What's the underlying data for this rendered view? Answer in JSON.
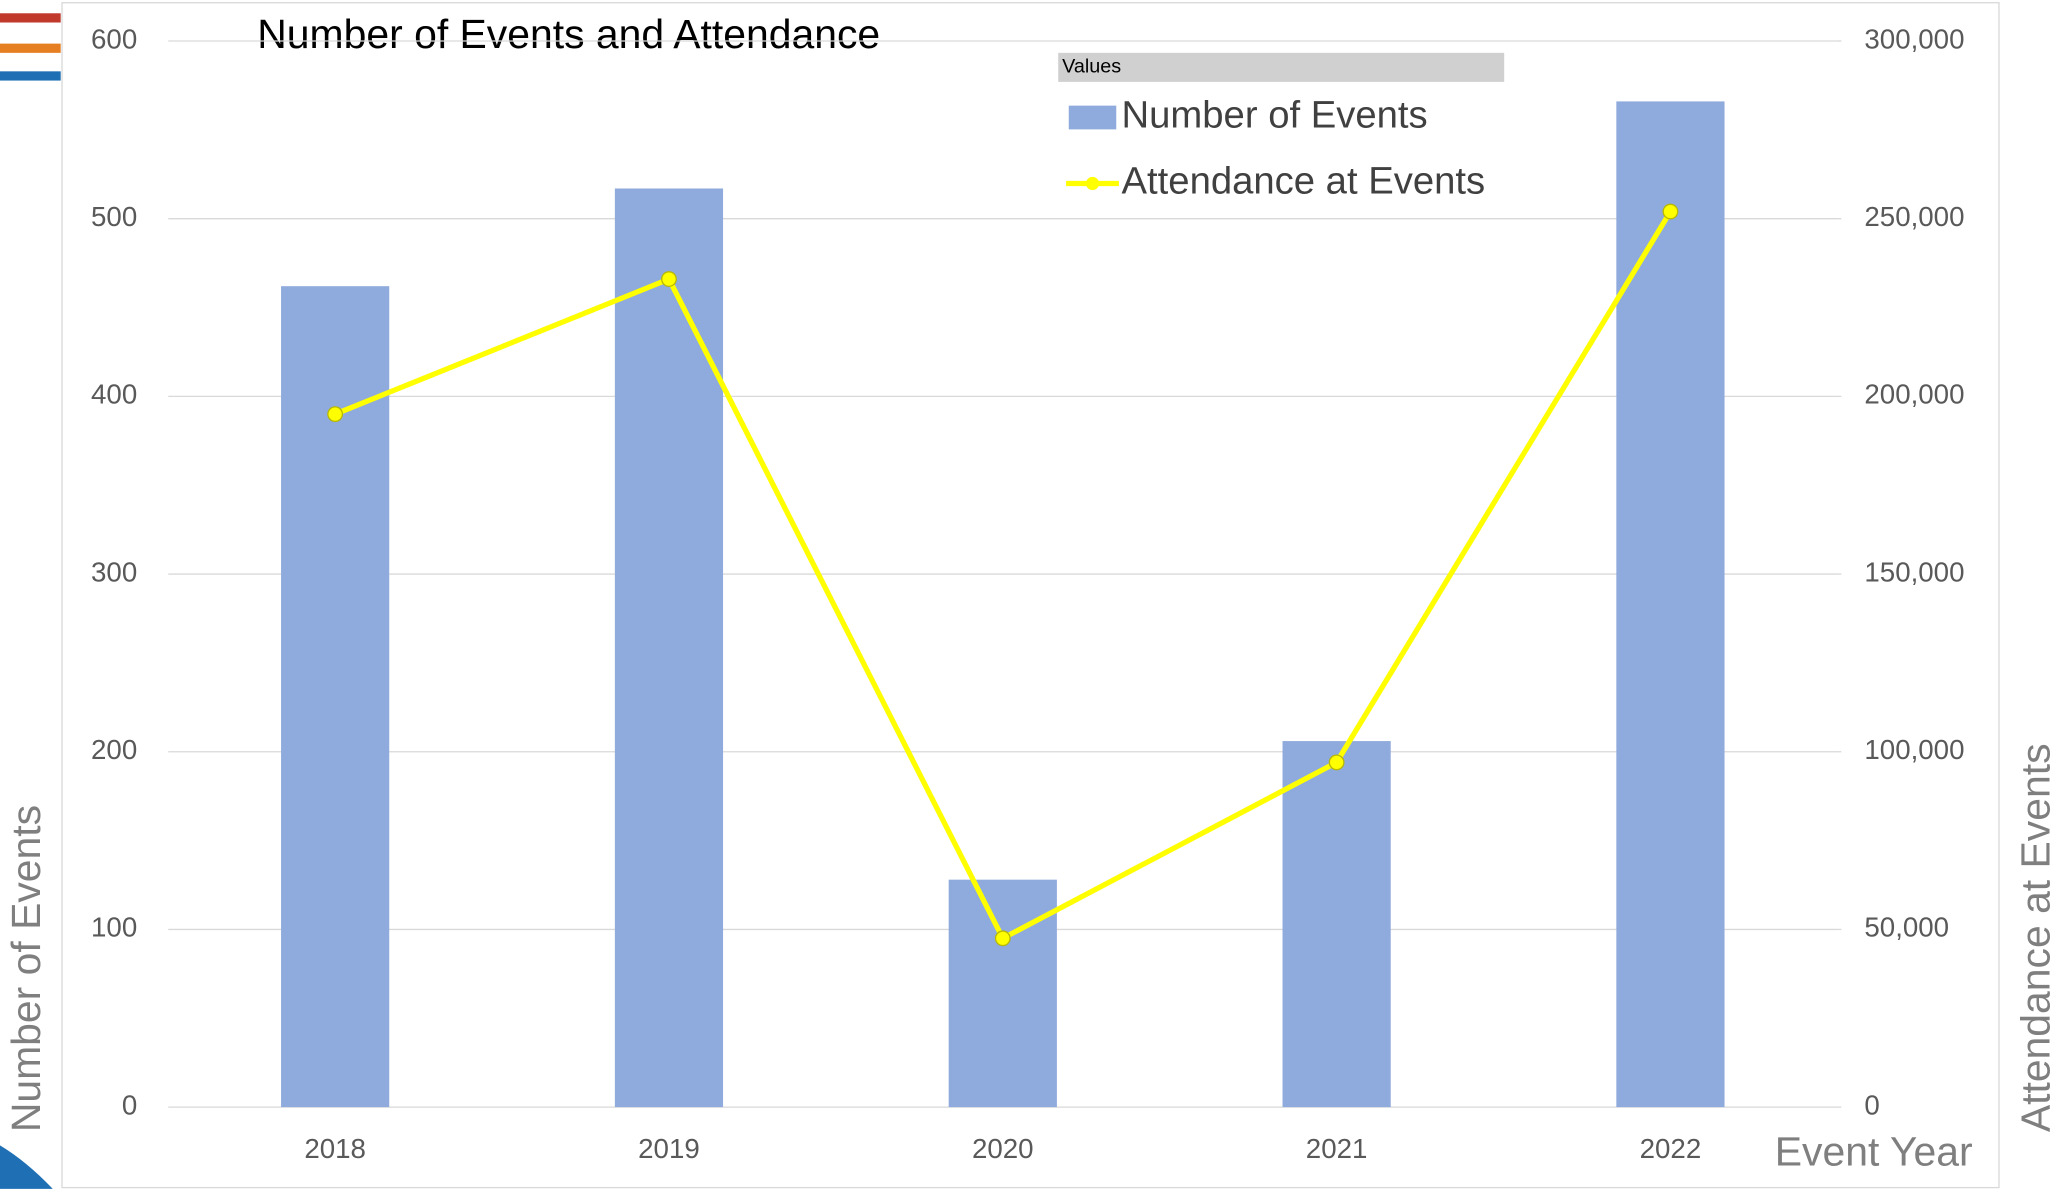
{
  "chart_data": {
    "type": "bar",
    "title": "Number of Events and Attendance",
    "x_label": "Event Year",
    "y_label": "Number of Events",
    "y2_label": "Attendance at Events",
    "legend_title": "Values",
    "legend_position": "top-right",
    "grid": true,
    "categories": [
      "2018",
      "2019",
      "2020",
      "2021",
      "2022"
    ],
    "series": [
      {
        "name": "Number of Events",
        "type": "bar",
        "color": "#8faadc",
        "values": [
          462,
          517,
          128,
          206,
          566
        ]
      },
      {
        "name": "Attendance at Events",
        "type": "line",
        "axis": "y2",
        "color": "#ffff00",
        "values": [
          195000,
          233000,
          47500,
          97000,
          252000
        ]
      }
    ],
    "ylim": [
      0,
      600
    ],
    "yticks": [
      0,
      100,
      200,
      300,
      400,
      500,
      600
    ],
    "y2lim": [
      0,
      300000
    ],
    "y2ticks": [
      {
        "value": 0,
        "label": "0"
      },
      {
        "value": 50000,
        "label": "50,000"
      },
      {
        "value": 100000,
        "label": "100,000"
      },
      {
        "value": 150000,
        "label": "150,000"
      },
      {
        "value": 200000,
        "label": "200,000"
      },
      {
        "value": 250000,
        "label": "250,000"
      },
      {
        "value": 300000,
        "label": "300,000"
      }
    ]
  }
}
